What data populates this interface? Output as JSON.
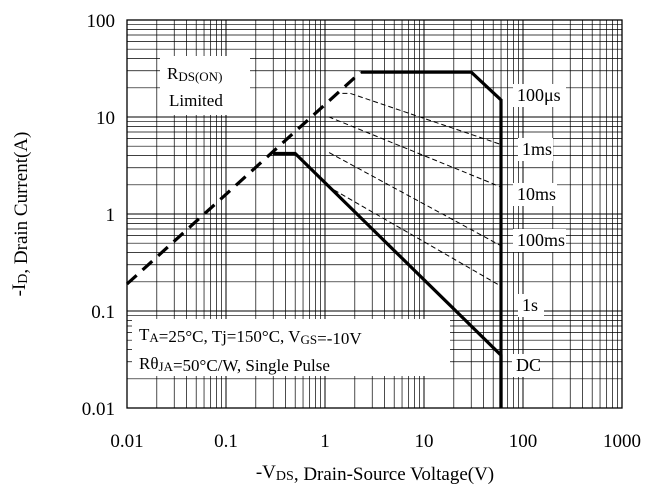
{
  "chart_data": {
    "type": "line",
    "x_scale": "log",
    "y_scale": "log",
    "xlim": [
      0.01,
      1000
    ],
    "ylim": [
      0.01,
      100
    ],
    "grid": true,
    "x_ticks": [
      "0.01",
      "0.1",
      "1",
      "10",
      "100",
      "1000"
    ],
    "y_ticks": [
      "0.01",
      "0.1",
      "1",
      "10",
      "100"
    ],
    "xlabel": {
      "prefix": "-V",
      "sub": "DS",
      "suffix": ", Drain-Source Voltage(V)"
    },
    "ylabel": {
      "prefix": "-I",
      "sub": "D",
      "suffix": ", Drain Current(A)"
    },
    "rds_label": {
      "prefix": "R",
      "sub": "DS(ON)",
      "line2": "Limited"
    },
    "conditions": {
      "line1": [
        {
          "t": "T"
        },
        {
          "t": "A",
          "sub": true
        },
        {
          "t": "=25°C, Tj=150°C, V"
        },
        {
          "t": "GS",
          "sub": true
        },
        {
          "t": "=-10V"
        }
      ],
      "line2": [
        {
          "t": "Rθ"
        },
        {
          "t": "JA",
          "sub": true
        },
        {
          "t": "=50°C/W, Single Pulse"
        }
      ]
    },
    "rds_on_limit": {
      "style": "bold-dashed",
      "points": [
        [
          0.01,
          0.19
        ],
        [
          2.3,
          29
        ]
      ]
    },
    "series": [
      {
        "name": "100μs",
        "style": "solid-bold",
        "points": [
          [
            2.3,
            29
          ],
          [
            30,
            29
          ],
          [
            60,
            15
          ],
          [
            60,
            0.01
          ]
        ]
      },
      {
        "name": "1ms",
        "style": "dashed-thin",
        "points": [
          [
            1.5,
            17.5
          ],
          [
            1.8,
            17.5
          ],
          [
            60,
            5.2
          ]
        ]
      },
      {
        "name": "10ms",
        "style": "dashed-thin",
        "points": [
          [
            0.9,
            10
          ],
          [
            1.1,
            10
          ],
          [
            60,
            1.9
          ]
        ]
      },
      {
        "name": "100ms",
        "style": "dashed-thin",
        "points": [
          [
            1.1,
            4.3
          ],
          [
            60,
            0.47
          ]
        ]
      },
      {
        "name": "1s",
        "style": "dashed-thin",
        "points": [
          [
            1.05,
            1.95
          ],
          [
            60,
            0.18
          ]
        ]
      },
      {
        "name": "DC",
        "style": "solid-bold",
        "points": [
          [
            0.3,
            4.2
          ],
          [
            0.5,
            4.2
          ],
          [
            60,
            0.035
          ],
          [
            60,
            0.01
          ]
        ]
      }
    ]
  }
}
